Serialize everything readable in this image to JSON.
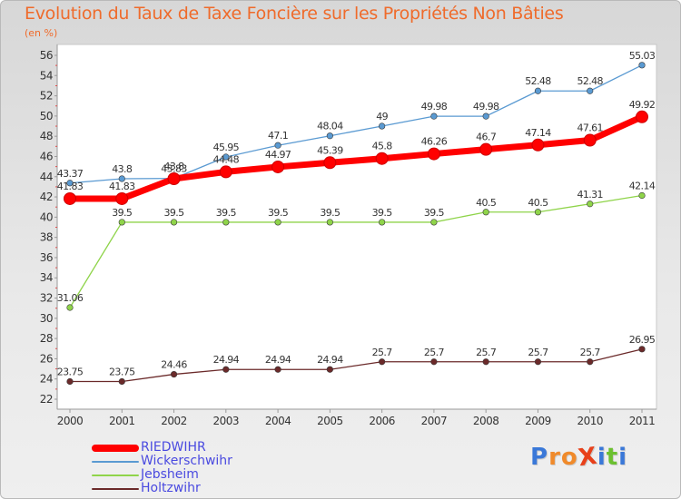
{
  "title": "Evolution du Taux de Taxe Foncière sur les Propriétés Non Bâties",
  "unit_label": "(en %)",
  "brand": {
    "text": "ProXiti",
    "letters": [
      "P",
      "r",
      "o",
      "X",
      "i",
      "t",
      "i"
    ],
    "colors": [
      "#3a78d8",
      "#f08a2a",
      "#f08a2a",
      "#e8401a",
      "#3a78d8",
      "#6cc030",
      "#3a78d8"
    ]
  },
  "colors": {
    "title": "#ef6b2b",
    "legend_text": "#4a4ae0",
    "axis_text": "#333333"
  },
  "chart_data": {
    "type": "line",
    "title": "Evolution du Taux de Taxe Foncière sur les Propriétés Non Bâties",
    "xlabel": "",
    "ylabel": "(en %)",
    "x": [
      "2000",
      "2001",
      "2002",
      "2003",
      "2004",
      "2005",
      "2006",
      "2007",
      "2008",
      "2009",
      "2010",
      "2011"
    ],
    "ylim": [
      22,
      56
    ],
    "yticks": [
      "22",
      "24",
      "26",
      "28",
      "30",
      "32",
      "34",
      "36",
      "38",
      "40",
      "42",
      "44",
      "46",
      "48",
      "50",
      "52",
      "54",
      "56"
    ],
    "grid": false,
    "legend": "bottom-left",
    "series": [
      {
        "name": "RIEDWIHR",
        "color": "#ff0000",
        "emphasis": true,
        "values": [
          41.83,
          41.83,
          43.8,
          44.48,
          44.97,
          45.39,
          45.8,
          46.26,
          46.7,
          47.14,
          47.61,
          49.92
        ],
        "labels": [
          "41.83",
          "41.83",
          "43.8",
          "44.48",
          "44.97",
          "45.39",
          "45.8",
          "46.26",
          "46.7",
          "47.14",
          "47.61",
          "49.92"
        ]
      },
      {
        "name": "Wickerschwihr",
        "color": "#5a9ad2",
        "emphasis": false,
        "values": [
          43.37,
          43.8,
          43.83,
          45.95,
          47.1,
          48.04,
          49,
          49.98,
          49.98,
          52.48,
          52.48,
          55.03
        ],
        "labels": [
          "43.37",
          "43.8",
          "43.83",
          "45.95",
          "47.1",
          "48.04",
          "49",
          "49.98",
          "49.98",
          "52.48",
          "52.48",
          "55.03"
        ]
      },
      {
        "name": "Jebsheim",
        "color": "#8fd44a",
        "emphasis": false,
        "values": [
          31.06,
          39.5,
          39.5,
          39.5,
          39.5,
          39.5,
          39.5,
          39.5,
          40.5,
          40.5,
          41.31,
          42.14
        ],
        "labels": [
          "31.06",
          "39.5",
          "39.5",
          "39.5",
          "39.5",
          "39.5",
          "39.5",
          "39.5",
          "40.5",
          "40.5",
          "41.31",
          "42.14"
        ]
      },
      {
        "name": "Holtzwihr",
        "color": "#6b2a2a",
        "emphasis": false,
        "values": [
          23.75,
          23.75,
          24.46,
          24.94,
          24.94,
          24.94,
          25.7,
          25.7,
          25.7,
          25.7,
          25.7,
          26.95
        ],
        "labels": [
          "23.75",
          "23.75",
          "24.46",
          "24.94",
          "24.94",
          "24.94",
          "25.7",
          "25.7",
          "25.7",
          "25.7",
          "25.7",
          "26.95"
        ]
      }
    ]
  }
}
